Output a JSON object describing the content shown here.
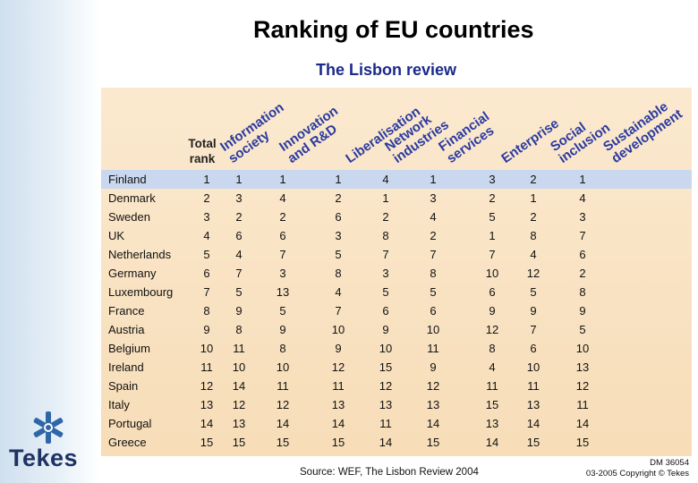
{
  "title": "Ranking of EU countries",
  "subtitle": "The Lisbon review",
  "total_rank_label": [
    "Total",
    "rank"
  ],
  "columns": [
    [
      "Information",
      "society"
    ],
    [
      "Innovation",
      "and R&D"
    ],
    [
      "Liberalisation"
    ],
    [
      "Network",
      "industries"
    ],
    [
      "Financial",
      "services"
    ],
    [
      "Enterprise"
    ],
    [
      "Social",
      "inclusion"
    ],
    [
      "Sustainable",
      "development"
    ]
  ],
  "rows": [
    {
      "country": "Finland",
      "values": [
        "1",
        "1",
        "1",
        "1",
        "4",
        "1",
        "3",
        "2",
        "1"
      ]
    },
    {
      "country": "Denmark",
      "values": [
        "2",
        "3",
        "4",
        "2",
        "1",
        "3",
        "2",
        "1",
        "4"
      ]
    },
    {
      "country": "Sweden",
      "values": [
        "3",
        "2",
        "2",
        "6",
        "2",
        "4",
        "5",
        "2",
        "3"
      ]
    },
    {
      "country": "UK",
      "values": [
        "4",
        "6",
        "6",
        "3",
        "8",
        "2",
        "1",
        "8",
        "7"
      ]
    },
    {
      "country": "Netherlands",
      "values": [
        "5",
        "4",
        "7",
        "5",
        "7",
        "7",
        "7",
        "4",
        "6"
      ]
    },
    {
      "country": "Germany",
      "values": [
        "6",
        "7",
        "3",
        "8",
        "3",
        "8",
        "10",
        "12",
        "2"
      ]
    },
    {
      "country": "Luxembourg",
      "values": [
        "7",
        "5",
        "13",
        "4",
        "5",
        "5",
        "6",
        "5",
        "8"
      ]
    },
    {
      "country": "France",
      "values": [
        "8",
        "9",
        "5",
        "7",
        "6",
        "6",
        "9",
        "9",
        "9"
      ]
    },
    {
      "country": "Austria",
      "values": [
        "9",
        "8",
        "9",
        "10",
        "9",
        "10",
        "12",
        "7",
        "5"
      ]
    },
    {
      "country": "Belgium",
      "values": [
        "10",
        "11",
        "8",
        "9",
        "10",
        "11",
        "8",
        "6",
        "10"
      ]
    },
    {
      "country": "Ireland",
      "values": [
        "11",
        "10",
        "10",
        "12",
        "15",
        "9",
        "4",
        "10",
        "13"
      ]
    },
    {
      "country": "Spain",
      "values": [
        "12",
        "14",
        "11",
        "11",
        "12",
        "12",
        "11",
        "11",
        "12"
      ]
    },
    {
      "country": "Italy",
      "values": [
        "13",
        "12",
        "12",
        "13",
        "13",
        "13",
        "15",
        "13",
        "11"
      ]
    },
    {
      "country": "Portugal",
      "values": [
        "14",
        "13",
        "14",
        "14",
        "11",
        "14",
        "13",
        "14",
        "14"
      ]
    },
    {
      "country": "Greece",
      "values": [
        "15",
        "15",
        "15",
        "15",
        "14",
        "15",
        "14",
        "15",
        "15"
      ]
    }
  ],
  "source": "Source: WEF, The Lisbon Review 2004",
  "doc_id": "DM 36054",
  "copyright": "03-2005 Copyright © Tekes",
  "logo_text": "Tekes",
  "colors": {
    "header_text": "#2b3aa0",
    "panel": "#f7ddb8",
    "first_row": "#c9d8ef",
    "brand": "#1e3264"
  }
}
